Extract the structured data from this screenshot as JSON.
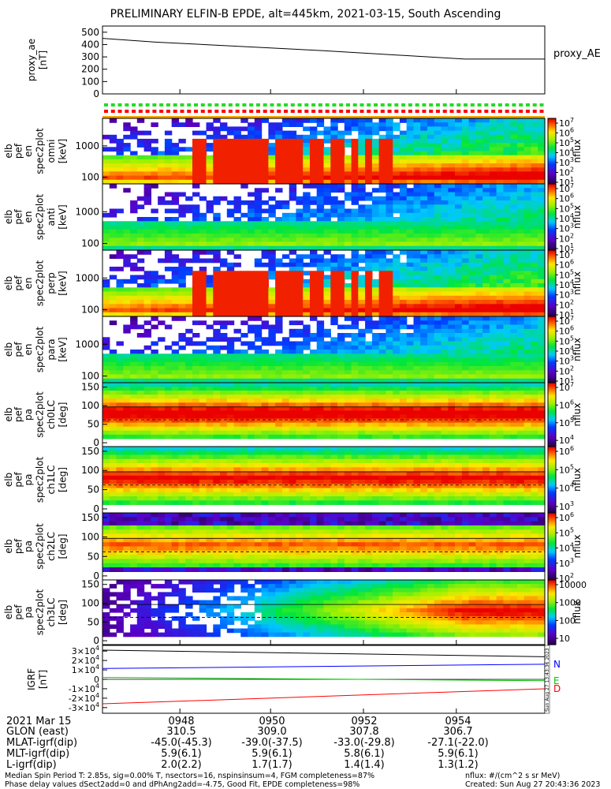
{
  "title": "PRELIMINARY ELFIN-B EPDE, alt=445km, 2021-03-15, South Ascending",
  "chart_data": [
    {
      "type": "line",
      "panel": "proxy_ae",
      "ylabel": [
        "proxy_ae",
        "[nT]"
      ],
      "ylim": [
        0,
        550
      ],
      "yticks": [
        "500",
        "400",
        "300",
        "200",
        "100",
        "0"
      ],
      "yvals": [
        500,
        400,
        300,
        200,
        100,
        0
      ],
      "series": [
        {
          "name": "proxy_AE",
          "x": [
            0,
            0.12,
            0.5,
            0.82,
            1.0
          ],
          "values": [
            450,
            420,
            350,
            282,
            282
          ],
          "color": "#000000"
        }
      ]
    },
    {
      "type": "heatmap",
      "panel": "en-1",
      "ylabel": [
        "elb",
        "pef",
        "en",
        "spec2plot",
        "omni",
        "[keV]"
      ],
      "yticks": [
        "1000",
        "100"
      ],
      "cbar": {
        "label": "nflux",
        "scale": "log",
        "ticks": [
          "10^7",
          "10^6",
          "10^5",
          "10^4",
          "10^3",
          "10^2",
          "10^1"
        ],
        "range": [
          1,
          7
        ]
      }
    },
    {
      "type": "heatmap",
      "panel": "en-2",
      "ylabel": [
        "elb",
        "pef",
        "en",
        "spec2plot",
        "anti",
        "[keV]"
      ],
      "yticks": [
        "1000",
        "100"
      ],
      "cbar": {
        "label": "nflux",
        "scale": "log",
        "ticks": [
          "10^7",
          "10^6",
          "10^5",
          "10^4",
          "10^3",
          "10^2",
          "10^1"
        ],
        "range": [
          1,
          7
        ]
      }
    },
    {
      "type": "heatmap",
      "panel": "en-3",
      "ylabel": [
        "elb",
        "pef",
        "en",
        "spec2plot",
        "perp",
        "[keV]"
      ],
      "yticks": [
        "1000",
        "100"
      ],
      "cbar": {
        "label": "nflux",
        "scale": "log",
        "ticks": [
          "10^7",
          "10^6",
          "10^5",
          "10^4",
          "10^3",
          "10^2",
          "10^1"
        ],
        "range": [
          1,
          7
        ]
      }
    },
    {
      "type": "heatmap",
      "panel": "en-4",
      "ylabel": [
        "elb",
        "pef",
        "en",
        "spec2plot",
        "para",
        "[keV]"
      ],
      "yticks": [
        "1000",
        "100"
      ],
      "cbar": {
        "label": "nflux",
        "scale": "log",
        "ticks": [
          "10^7",
          "10^6",
          "10^5",
          "10^4",
          "10^3",
          "10^2",
          "10^1"
        ],
        "range": [
          1,
          7
        ]
      }
    },
    {
      "type": "heatmap",
      "panel": "pa-0",
      "ylabel": [
        "elb",
        "pef",
        "pa",
        "spec2plot",
        "ch0LC",
        "[deg]"
      ],
      "yticks": [
        "150",
        "100",
        "50",
        "0"
      ],
      "cbar": {
        "label": "nflux",
        "scale": "log",
        "ticks": [
          "10^7",
          "10^6",
          "10^5",
          "10^4"
        ],
        "range": [
          3.4,
          7
        ]
      }
    },
    {
      "type": "heatmap",
      "panel": "pa-1",
      "ylabel": [
        "elb",
        "pef",
        "pa",
        "spec2plot",
        "ch1LC",
        "[deg]"
      ],
      "yticks": [
        "150",
        "100",
        "50",
        "0"
      ],
      "cbar": {
        "label": "nflux",
        "scale": "log",
        "ticks": [
          "10^6",
          "10^5",
          "10^4",
          "10^3"
        ],
        "range": [
          3,
          6.5
        ]
      }
    },
    {
      "type": "heatmap",
      "panel": "pa-2",
      "ylabel": [
        "elb",
        "pef",
        "pa",
        "spec2plot",
        "ch2LC",
        "[deg]"
      ],
      "yticks": [
        "150",
        "100",
        "50",
        "0"
      ],
      "cbar": {
        "label": "nflux",
        "scale": "log",
        "ticks": [
          "10^6",
          "10^5",
          "10^4",
          "10^3",
          "10^2"
        ],
        "range": [
          1.8,
          6.5
        ]
      }
    },
    {
      "type": "heatmap",
      "panel": "pa-3",
      "ylabel": [
        "elb",
        "pef",
        "pa",
        "spec2plot",
        "ch3LC",
        "[deg]"
      ],
      "yticks": [
        "150",
        "100",
        "50",
        "0"
      ],
      "cbar": {
        "label": "nflux",
        "scale": "linear-log",
        "ticks": [
          "10000",
          "1000",
          "100",
          "10"
        ],
        "range": [
          1,
          4.3
        ]
      }
    },
    {
      "type": "line",
      "panel": "igrf",
      "ylabel": [
        "IGRF",
        "[nT]"
      ],
      "ylim": [
        -3.6,
        3.6
      ],
      "yticks": [
        "3×10^4",
        "2×10^4",
        "1×10^4",
        "0",
        "-1×10^4",
        "-2×10^4",
        "-3×10^4"
      ],
      "yvals": [
        3,
        2,
        1,
        0,
        -1,
        -2,
        -3
      ],
      "series": [
        {
          "name": "N",
          "x": [
            0,
            1
          ],
          "values": [
            1.15,
            1.6
          ],
          "color": "#0000ff"
        },
        {
          "name": "E",
          "x": [
            0,
            1
          ],
          "values": [
            0.2,
            -0.15
          ],
          "color": "#00c800"
        },
        {
          "name": "D",
          "x": [
            0,
            1
          ],
          "values": [
            -2.6,
            -1.0
          ],
          "color": "#ff0000"
        },
        {
          "name": "",
          "x": [
            0,
            1
          ],
          "values": [
            3.1,
            2.4
          ],
          "color": "#000000"
        }
      ]
    }
  ],
  "footer": {
    "date": "2021 Mar 15",
    "ticks": [
      "0948",
      "0950",
      "0952",
      "0954"
    ],
    "rows": [
      {
        "label": "GLON (east)",
        "values": [
          "310.5",
          "309.0",
          "307.8",
          "306.7"
        ]
      },
      {
        "label": "MLAT-igrf(dip)",
        "values": [
          "-45.0(-45.3)",
          "-39.0(-37.5)",
          "-33.0(-29.8)",
          "-27.1(-22.0)"
        ]
      },
      {
        "label": "MLT-igrf(dip)",
        "values": [
          "5.9(6.1)",
          "5.9(6.1)",
          "5.8(6.1)",
          "5.9(6.1)"
        ]
      },
      {
        "label": "L-igrf(dip)",
        "values": [
          "2.0(2.2)",
          "1.7(1.7)",
          "1.4(1.4)",
          "1.3(1.2)"
        ]
      }
    ],
    "note1": "Median Spin Period T: 2.85s, sig=0.00% T, nsectors=16, nspinsinsum=4, FGM completeness=87%",
    "note2": "Phase delay values dSect2add=0 and dPhAng2add=-4.75, Good Fit, EPDE completeness=98%",
    "units": "nflux: #/(cm^2 s sr MeV)",
    "created": "Created: Sun Aug 27 20:43:36 2023",
    "side_stamp": "Sun Aug 27 13:43:36 2023"
  },
  "colors": {
    "accent": "#ff0000",
    "status_green": "#22dd22"
  }
}
